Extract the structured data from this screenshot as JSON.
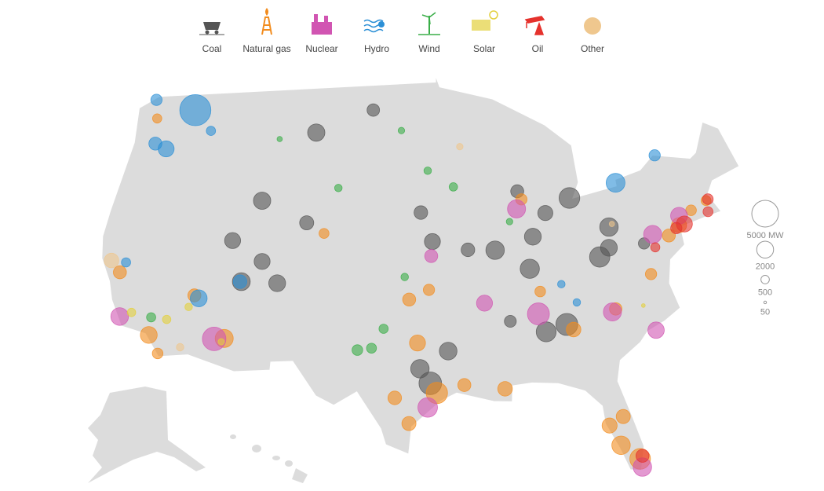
{
  "legend": [
    {
      "label": "Coal",
      "color": "#555555"
    },
    {
      "label": "Natural gas",
      "color": "#f28c1e"
    },
    {
      "label": "Nuclear",
      "color": "#d155b2"
    },
    {
      "label": "Hydro",
      "color": "#2b8fd6"
    },
    {
      "label": "Wind",
      "color": "#3aae48"
    },
    {
      "label": "Solar",
      "color": "#e3d03d"
    },
    {
      "label": "Oil",
      "color": "#e5322d"
    },
    {
      "label": "Other",
      "color": "#efc78e"
    }
  ],
  "size_legend": [
    {
      "value": 5000,
      "label": "5000 MW"
    },
    2000,
    500,
    50
  ],
  "plants": [
    {
      "fuel": 0,
      "lon": -87.5,
      "lat": 37.5,
      "mw": 2600
    },
    {
      "fuel": 0,
      "lon": -86.6,
      "lat": 33.6,
      "mw": 2800
    },
    {
      "fuel": 0,
      "lon": -84.9,
      "lat": 34.1,
      "mw": 3400
    },
    {
      "fuel": 0,
      "lon": -81.5,
      "lat": 38.4,
      "mw": 2900
    },
    {
      "fuel": 0,
      "lon": -80.3,
      "lat": 40.3,
      "mw": 2400
    },
    {
      "fuel": 0,
      "lon": -87,
      "lat": 39.5,
      "mw": 2000
    },
    {
      "fuel": 0,
      "lon": -90.3,
      "lat": 38.6,
      "mw": 2400
    },
    {
      "fuel": 0,
      "lon": -95.6,
      "lat": 39.1,
      "mw": 1800
    },
    {
      "fuel": 0,
      "lon": -95.8,
      "lat": 30.3,
      "mw": 3600
    },
    {
      "fuel": 0,
      "lon": -96.6,
      "lat": 31.2,
      "mw": 2400
    },
    {
      "fuel": 0,
      "lon": -94.4,
      "lat": 32.3,
      "mw": 2200
    },
    {
      "fuel": 0,
      "lon": -106.5,
      "lat": 40.4,
      "mw": 1400
    },
    {
      "fuel": 0,
      "lon": -108.4,
      "lat": 36.7,
      "mw": 2000
    },
    {
      "fuel": 0,
      "lon": -109.9,
      "lat": 38.1,
      "mw": 1800
    },
    {
      "fuel": 0,
      "lon": -110.7,
      "lat": 41.9,
      "mw": 2100
    },
    {
      "fuel": 0,
      "lon": -106.6,
      "lat": 46,
      "mw": 2100
    },
    {
      "fuel": 0,
      "lon": -101.3,
      "lat": 47.3,
      "mw": 1100
    },
    {
      "fuel": 0,
      "lon": -112.7,
      "lat": 39.5,
      "mw": 1800
    },
    {
      "fuel": 0,
      "lon": -111.4,
      "lat": 36.9,
      "mw": 2250
    },
    {
      "fuel": 0,
      "lon": -88,
      "lat": 42.3,
      "mw": 1200
    },
    {
      "fuel": 0,
      "lon": -83.4,
      "lat": 42,
      "mw": 3000
    },
    {
      "fuel": 0,
      "lon": -80.6,
      "lat": 39,
      "mw": 2000
    },
    {
      "fuel": 0,
      "lon": -77.5,
      "lat": 39.4,
      "mw": 900
    },
    {
      "fuel": 0,
      "lon": -85.7,
      "lat": 41,
      "mw": 1600
    },
    {
      "fuel": 0,
      "lon": -92.6,
      "lat": 38.6,
      "mw": 1300
    },
    {
      "fuel": 0,
      "lon": -96.6,
      "lat": 40.9,
      "mw": 1300
    },
    {
      "fuel": 0,
      "lon": -89.4,
      "lat": 34.2,
      "mw": 1000
    },
    {
      "fuel": 1,
      "lon": -118.2,
      "lat": 33.9,
      "mw": 2000
    },
    {
      "fuel": 1,
      "lon": -117.2,
      "lat": 32.7,
      "mw": 800
    },
    {
      "fuel": 1,
      "lon": -121.8,
      "lat": 38,
      "mw": 1200
    },
    {
      "fuel": 1,
      "lon": -95.3,
      "lat": 29.7,
      "mw": 3200
    },
    {
      "fuel": 1,
      "lon": -97.4,
      "lat": 27.8,
      "mw": 1400
    },
    {
      "fuel": 1,
      "lon": -98.5,
      "lat": 29.4,
      "mw": 1300
    },
    {
      "fuel": 1,
      "lon": -96.8,
      "lat": 32.8,
      "mw": 1800
    },
    {
      "fuel": 1,
      "lon": -90.1,
      "lat": 30,
      "mw": 1500
    },
    {
      "fuel": 1,
      "lon": -93.2,
      "lat": 30.2,
      "mw": 1200
    },
    {
      "fuel": 1,
      "lon": -81.7,
      "lat": 26.7,
      "mw": 2400
    },
    {
      "fuel": 1,
      "lon": -80.4,
      "lat": 25.9,
      "mw": 3000
    },
    {
      "fuel": 1,
      "lon": -82.4,
      "lat": 27.9,
      "mw": 1600
    },
    {
      "fuel": 1,
      "lon": -81.3,
      "lat": 28.5,
      "mw": 1400
    },
    {
      "fuel": 1,
      "lon": -112.1,
      "lat": 33.4,
      "mw": 2300
    },
    {
      "fuel": 1,
      "lon": -115.1,
      "lat": 36.2,
      "mw": 1200
    },
    {
      "fuel": 1,
      "lon": -84.4,
      "lat": 33.8,
      "mw": 1500
    },
    {
      "fuel": 1,
      "lon": -86.8,
      "lat": 36.1,
      "mw": 800
    },
    {
      "fuel": 1,
      "lon": -80.8,
      "lat": 35.2,
      "mw": 1100
    },
    {
      "fuel": 1,
      "lon": -77.4,
      "lat": 37.5,
      "mw": 900
    },
    {
      "fuel": 1,
      "lon": -74.1,
      "lat": 40.7,
      "mw": 1600
    },
    {
      "fuel": 1,
      "lon": -75.2,
      "lat": 40,
      "mw": 1200
    },
    {
      "fuel": 1,
      "lon": -72.7,
      "lat": 41.7,
      "mw": 800
    },
    {
      "fuel": 1,
      "lon": -71.1,
      "lat": 42.4,
      "mw": 700
    },
    {
      "fuel": 1,
      "lon": -122.5,
      "lat": 47.6,
      "mw": 600
    },
    {
      "fuel": 1,
      "lon": -104.9,
      "lat": 39.7,
      "mw": 700
    },
    {
      "fuel": 1,
      "lon": -97.5,
      "lat": 35.5,
      "mw": 1200
    },
    {
      "fuel": 1,
      "lon": -95.9,
      "lat": 36.1,
      "mw": 900
    },
    {
      "fuel": 1,
      "lon": -87.7,
      "lat": 41.8,
      "mw": 900
    },
    {
      "fuel": 2,
      "lon": -112.9,
      "lat": 33.4,
      "mw": 3900
    },
    {
      "fuel": 2,
      "lon": -120.9,
      "lat": 35.2,
      "mw": 2200
    },
    {
      "fuel": 2,
      "lon": -88.2,
      "lat": 41.2,
      "mw": 2300
    },
    {
      "fuel": 2,
      "lon": -76.6,
      "lat": 40,
      "mw": 2300
    },
    {
      "fuel": 2,
      "lon": -81.1,
      "lat": 35,
      "mw": 2300
    },
    {
      "fuel": 2,
      "lon": -77.8,
      "lat": 34,
      "mw": 1900
    },
    {
      "fuel": 2,
      "lon": -96,
      "lat": 28.8,
      "mw": 2700
    },
    {
      "fuel": 2,
      "lon": -95.7,
      "lat": 38.2,
      "mw": 1200
    },
    {
      "fuel": 2,
      "lon": -80.3,
      "lat": 25.4,
      "mw": 2400
    },
    {
      "fuel": 2,
      "lon": -73.9,
      "lat": 41.3,
      "mw": 2000
    },
    {
      "fuel": 2,
      "lon": -87.1,
      "lat": 34.7,
      "mw": 3400
    },
    {
      "fuel": 2,
      "lon": -91.4,
      "lat": 35.3,
      "mw": 1800
    },
    {
      "fuel": 3,
      "lon": -118.9,
      "lat": 47.9,
      "mw": 6800
    },
    {
      "fuel": 3,
      "lon": -120.7,
      "lat": 45.6,
      "mw": 1800
    },
    {
      "fuel": 3,
      "lon": -121.9,
      "lat": 46,
      "mw": 1200
    },
    {
      "fuel": 3,
      "lon": -123.2,
      "lat": 48.8,
      "mw": 900
    },
    {
      "fuel": 3,
      "lon": -116.8,
      "lat": 46.5,
      "mw": 600
    },
    {
      "fuel": 3,
      "lon": -114.7,
      "lat": 36,
      "mw": 2000
    },
    {
      "fuel": 3,
      "lon": -111.5,
      "lat": 36.9,
      "mw": 1300
    },
    {
      "fuel": 3,
      "lon": -79,
      "lat": 43.1,
      "mw": 2500
    },
    {
      "fuel": 3,
      "lon": -74.8,
      "lat": 45,
      "mw": 900
    },
    {
      "fuel": 3,
      "lon": -121.5,
      "lat": 38.6,
      "mw": 600
    },
    {
      "fuel": 3,
      "lon": -85,
      "lat": 36.6,
      "mw": 400
    },
    {
      "fuel": 3,
      "lon": -83.9,
      "lat": 35.5,
      "mw": 400
    },
    {
      "fuel": 4,
      "lon": -101.5,
      "lat": 32.4,
      "mw": 800
    },
    {
      "fuel": 4,
      "lon": -100.4,
      "lat": 32.5,
      "mw": 700
    },
    {
      "fuel": 4,
      "lon": -99.5,
      "lat": 33.7,
      "mw": 600
    },
    {
      "fuel": 4,
      "lon": -97.9,
      "lat": 36.9,
      "mw": 400
    },
    {
      "fuel": 4,
      "lon": -93.7,
      "lat": 42.5,
      "mw": 500
    },
    {
      "fuel": 4,
      "lon": -96,
      "lat": 43.5,
      "mw": 400
    },
    {
      "fuel": 4,
      "lon": -118.3,
      "lat": 35,
      "mw": 600
    },
    {
      "fuel": 4,
      "lon": -88.9,
      "lat": 40.4,
      "mw": 300
    },
    {
      "fuel": 4,
      "lon": -104,
      "lat": 42.5,
      "mw": 400
    },
    {
      "fuel": 4,
      "lon": -98.5,
      "lat": 46,
      "mw": 300
    },
    {
      "fuel": 4,
      "lon": -110,
      "lat": 45.7,
      "mw": 200
    },
    {
      "fuel": 5,
      "lon": -115.4,
      "lat": 35.5,
      "mw": 400
    },
    {
      "fuel": 5,
      "lon": -117,
      "lat": 34.8,
      "mw": 500
    },
    {
      "fuel": 5,
      "lon": -120,
      "lat": 35.4,
      "mw": 500
    },
    {
      "fuel": 5,
      "lon": -112.3,
      "lat": 33.2,
      "mw": 290
    },
    {
      "fuel": 5,
      "lon": -78.5,
      "lat": 35.5,
      "mw": 100
    },
    {
      "fuel": 6,
      "lon": -73.6,
      "lat": 40.8,
      "mw": 1800
    },
    {
      "fuel": 6,
      "lon": -70.9,
      "lat": 42.5,
      "mw": 800
    },
    {
      "fuel": 6,
      "lon": -76.6,
      "lat": 39.2,
      "mw": 600
    },
    {
      "fuel": 6,
      "lon": -80.2,
      "lat": 26.1,
      "mw": 1200
    },
    {
      "fuel": 6,
      "lon": -71.2,
      "lat": 41.7,
      "mw": 700
    },
    {
      "fuel": 6,
      "lon": -74.4,
      "lat": 40.5,
      "mw": 900
    },
    {
      "fuel": 7,
      "lon": -122.8,
      "lat": 38.8,
      "mw": 1500
    },
    {
      "fuel": 7,
      "lon": -115.5,
      "lat": 33,
      "mw": 400
    },
    {
      "fuel": 7,
      "lon": -93,
      "lat": 45,
      "mw": 300
    },
    {
      "fuel": 7,
      "lon": -80,
      "lat": 40.5,
      "mw": 200
    }
  ]
}
